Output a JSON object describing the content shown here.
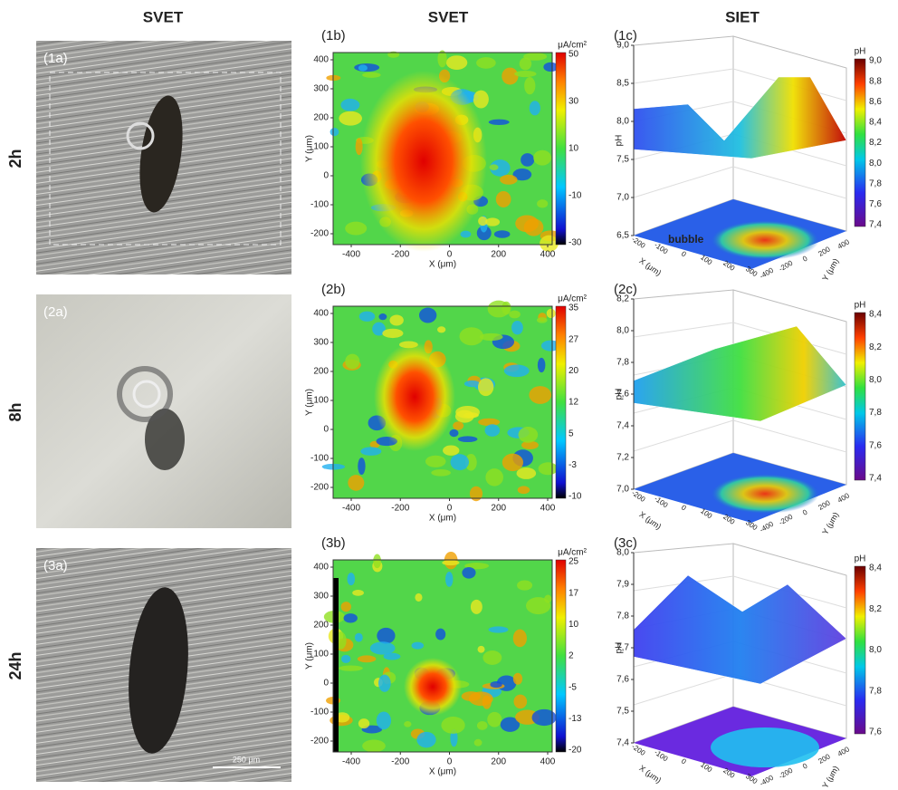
{
  "column_headers": [
    "SVET",
    "SVET",
    "SIET"
  ],
  "rows": [
    {
      "row_label": "2h",
      "photo": {
        "label": "(1a)"
      },
      "svet_map": {
        "label": "(1b)",
        "x_label": "X (μm)",
        "y_label": "Y (μm)",
        "x_ticks": [
          "-400",
          "-200",
          "0",
          "200",
          "400"
        ],
        "y_ticks": [
          "400",
          "300",
          "200",
          "100",
          "0",
          "-100",
          "-200"
        ],
        "colorbar_unit": "μA/cm²",
        "colorbar_ticks": [
          "50",
          "30",
          "10",
          "-10",
          "-30"
        ]
      },
      "siet_plot": {
        "label": "(1c)",
        "z_label": "pH",
        "z_ticks": [
          "9,0",
          "8,5",
          "8,0",
          "7,5",
          "7,0",
          "6,5"
        ],
        "colorbar_title": "pH",
        "colorbar_ticks": [
          "9,0",
          "8,8",
          "8,6",
          "8,4",
          "8,2",
          "8,0",
          "7,8",
          "7,6",
          "7,4"
        ],
        "x_label": "X (μm)",
        "x_ticks": [
          "-200",
          "-100",
          "0",
          "100",
          "200",
          "300"
        ],
        "y_label": "Y (μm)",
        "y_ticks": [
          "400",
          "200",
          "0",
          "-200",
          "-400"
        ],
        "annotation": "bubble"
      }
    },
    {
      "row_label": "8h",
      "photo": {
        "label": "(2a)"
      },
      "svet_map": {
        "label": "(2b)",
        "x_label": "X (μm)",
        "y_label": "Y (μm)",
        "x_ticks": [
          "-400",
          "-200",
          "0",
          "200",
          "400"
        ],
        "y_ticks": [
          "400",
          "300",
          "200",
          "100",
          "0",
          "-100",
          "-200"
        ],
        "colorbar_unit": "μA/cm²",
        "colorbar_ticks": [
          "35",
          "27",
          "20",
          "12",
          "5",
          "-3",
          "-10"
        ]
      },
      "siet_plot": {
        "label": "(2c)",
        "z_label": "pH",
        "z_ticks": [
          "8,2",
          "8,0",
          "7,8",
          "7,6",
          "7,4",
          "7,2",
          "7,0"
        ],
        "colorbar_title": "pH",
        "colorbar_ticks": [
          "8,4",
          "8,2",
          "8,0",
          "7,8",
          "7,6",
          "7,4"
        ],
        "x_label": "X (μm)",
        "x_ticks": [
          "-200",
          "-100",
          "0",
          "100",
          "200",
          "300"
        ],
        "y_label": "Y (μm)",
        "y_ticks": [
          "400",
          "200",
          "0",
          "-200",
          "-400"
        ]
      }
    },
    {
      "row_label": "24h",
      "photo": {
        "label": "(3a)",
        "scale_bar": "250 μm"
      },
      "svet_map": {
        "label": "(3b)",
        "x_label": "X (μm)",
        "y_label": "Y (μm)",
        "x_ticks": [
          "-400",
          "-200",
          "0",
          "200",
          "400"
        ],
        "y_ticks": [
          "400",
          "300",
          "200",
          "100",
          "0",
          "-100",
          "-200"
        ],
        "colorbar_unit": "μA/cm²",
        "colorbar_ticks": [
          "25",
          "17",
          "10",
          "2",
          "-5",
          "-13",
          "-20"
        ]
      },
      "siet_plot": {
        "label": "(3c)",
        "z_label": "pH",
        "z_ticks": [
          "8,0",
          "7,9",
          "7,8",
          "7,7",
          "7,6",
          "7,5",
          "7,4"
        ],
        "colorbar_title": "pH",
        "colorbar_ticks": [
          "8,4",
          "8,2",
          "8,0",
          "7,8",
          "7,6"
        ],
        "x_label": "X (μm)",
        "x_ticks": [
          "-200",
          "-100",
          "0",
          "100",
          "200",
          "300"
        ],
        "y_label": "Y (μm)",
        "y_ticks": [
          "400",
          "200",
          "0",
          "-200",
          "-400"
        ]
      }
    }
  ]
}
